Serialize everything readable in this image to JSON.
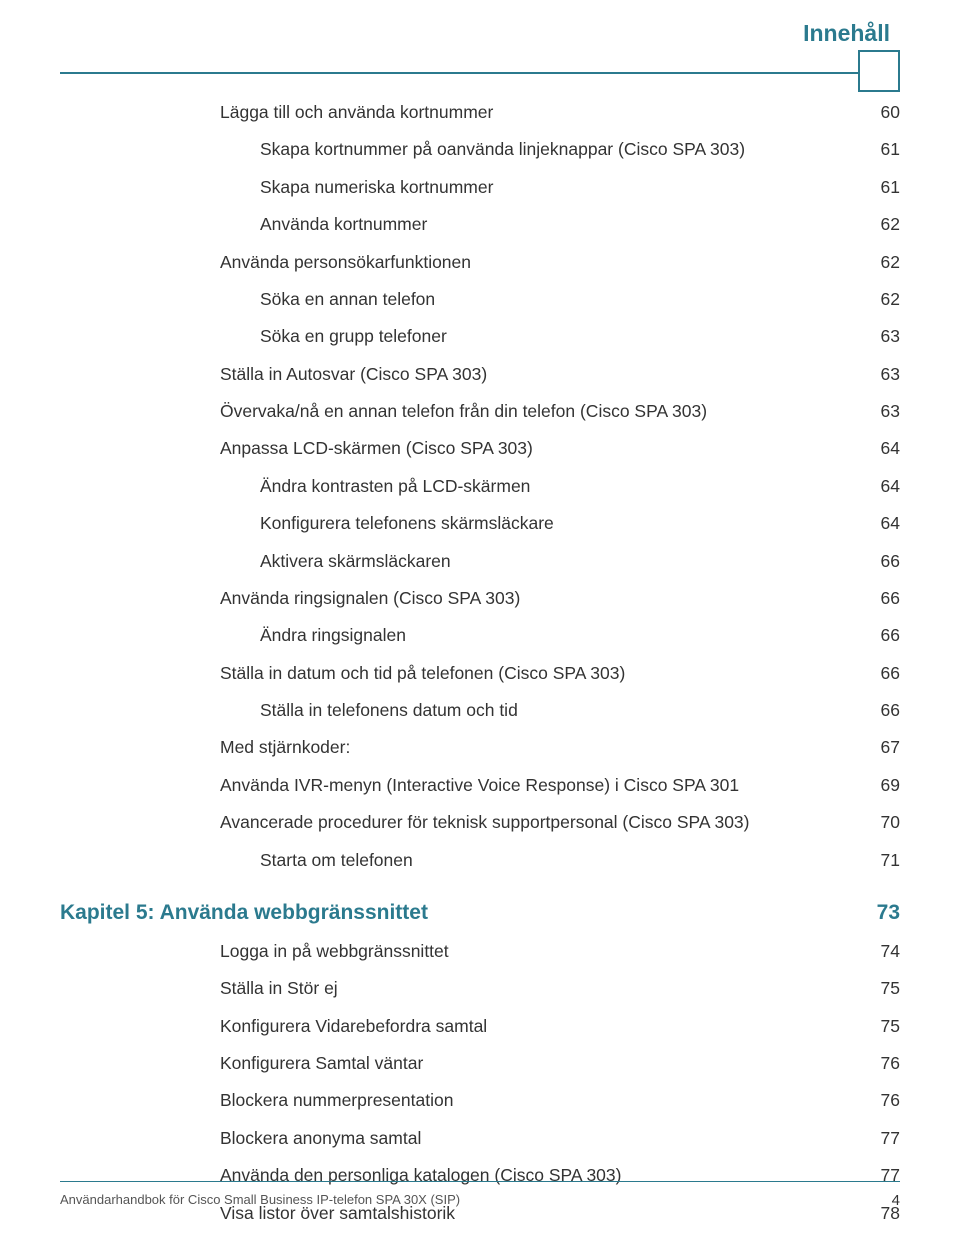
{
  "header": {
    "title": "Innehåll"
  },
  "toc": [
    {
      "level": 1,
      "label": "Lägga till och använda kortnummer",
      "page": "60"
    },
    {
      "level": 2,
      "label": "Skapa kortnummer på oanvända linjeknappar (Cisco SPA 303)",
      "page": "61"
    },
    {
      "level": 2,
      "label": "Skapa numeriska kortnummer",
      "page": "61"
    },
    {
      "level": 2,
      "label": "Använda kortnummer",
      "page": "62"
    },
    {
      "level": 1,
      "label": "Använda personsökarfunktionen",
      "page": "62"
    },
    {
      "level": 2,
      "label": "Söka en annan telefon",
      "page": "62"
    },
    {
      "level": 2,
      "label": "Söka en grupp telefoner",
      "page": "63"
    },
    {
      "level": 1,
      "label": "Ställa in Autosvar (Cisco SPA 303)",
      "page": "63"
    },
    {
      "level": 1,
      "label": "Övervaka/nå en annan telefon från din telefon (Cisco SPA 303)",
      "page": "63"
    },
    {
      "level": 1,
      "label": "Anpassa LCD-skärmen (Cisco SPA 303)",
      "page": "64"
    },
    {
      "level": 2,
      "label": "Ändra kontrasten på LCD-skärmen",
      "page": "64"
    },
    {
      "level": 2,
      "label": "Konfigurera telefonens skärmsläckare",
      "page": "64"
    },
    {
      "level": 2,
      "label": "Aktivera skärmsläckaren",
      "page": "66"
    },
    {
      "level": 1,
      "label": "Använda ringsignalen (Cisco SPA 303)",
      "page": "66"
    },
    {
      "level": 2,
      "label": "Ändra ringsignalen",
      "page": "66"
    },
    {
      "level": 1,
      "label": "Ställa in datum och tid på telefonen (Cisco SPA 303)",
      "page": "66"
    },
    {
      "level": 2,
      "label": "Ställa in telefonens datum och tid",
      "page": "66"
    },
    {
      "level": 1,
      "label": "Med stjärnkoder:",
      "page": "67"
    },
    {
      "level": 1,
      "label": "Använda IVR-menyn (Interactive Voice Response) i Cisco SPA 301",
      "page": "69"
    },
    {
      "level": 1,
      "label": "Avancerade procedurer för teknisk supportpersonal (Cisco SPA 303)",
      "page": "70"
    },
    {
      "level": 2,
      "label": "Starta om telefonen",
      "page": "71"
    }
  ],
  "chapter": {
    "label": "Kapitel 5: Använda webbgränssnittet",
    "page": "73",
    "items": [
      {
        "label": "Logga in på webbgränssnittet",
        "page": "74"
      },
      {
        "label": "Ställa in Stör ej",
        "page": "75"
      },
      {
        "label": "Konfigurera Vidarebefordra samtal",
        "page": "75"
      },
      {
        "label": "Konfigurera Samtal väntar",
        "page": "76"
      },
      {
        "label": "Blockera nummerpresentation",
        "page": "76"
      },
      {
        "label": "Blockera anonyma samtal",
        "page": "77"
      },
      {
        "label": "Använda den personliga katalogen (Cisco SPA 303)",
        "page": "77"
      },
      {
        "label": "Visa listor över samtalshistorik",
        "page": "78"
      }
    ]
  },
  "footer": {
    "text": "Användarhandbok för Cisco Small Business IP-telefon SPA 30X (SIP)",
    "page": "4"
  },
  "colors": {
    "accent": "#2b7a8e",
    "text": "#333333",
    "footer_text": "#555555",
    "background": "#ffffff"
  }
}
